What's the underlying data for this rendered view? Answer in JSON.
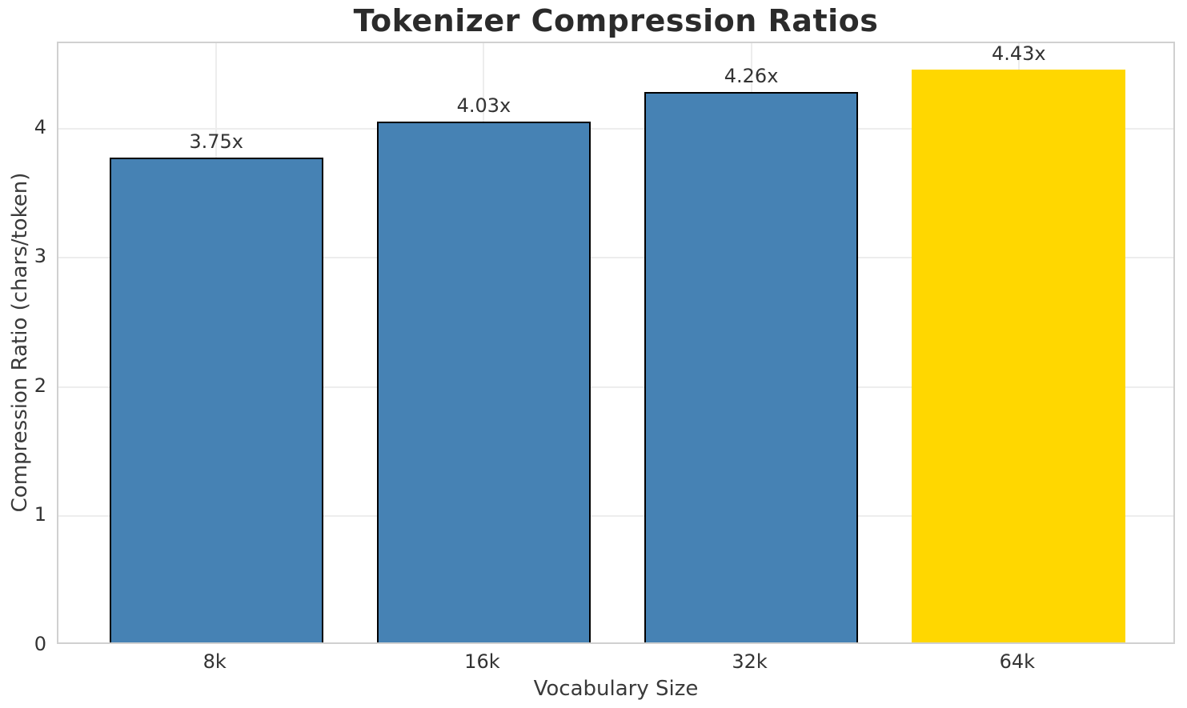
{
  "chart_data": {
    "type": "bar",
    "title": "Tokenizer Compression Ratios",
    "xlabel": "Vocabulary Size",
    "ylabel": "Compression Ratio (chars/token)",
    "categories": [
      "8k",
      "16k",
      "32k",
      "64k"
    ],
    "values": [
      3.75,
      4.03,
      4.26,
      4.43
    ],
    "value_labels": [
      "3.75x",
      "4.03x",
      "4.26x",
      "4.43x"
    ],
    "bar_colors": [
      "#4682B4",
      "#4682B4",
      "#4682B4",
      "#FFD700"
    ],
    "bar_edge_colors": [
      "#000000",
      "#000000",
      "#000000",
      "none"
    ],
    "yticks": [
      0,
      1,
      2,
      3,
      4
    ],
    "ytick_labels": [
      "0",
      "1",
      "2",
      "3",
      "4"
    ],
    "ylim": [
      0,
      4.66
    ],
    "xlim": [
      -0.59,
      3.59
    ],
    "bar_width": 0.8,
    "grid": "both",
    "grid_color": "#ededed",
    "spine_color": "#d0d0d0",
    "background_color": "#ffffff",
    "accent_color": "#FFD700",
    "base_bar_color": "#4682B4",
    "text_color": "#333333",
    "title_color": "#2b2b2b",
    "legend": "none"
  }
}
